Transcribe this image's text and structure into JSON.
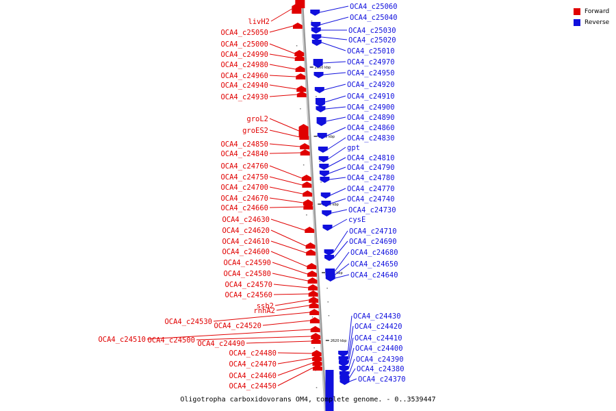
{
  "legend": {
    "forward_label": "Forward",
    "reverse_label": "Reverse",
    "forward_color": "#e00000",
    "reverse_color": "#1010dd"
  },
  "caption": "Oligotropha carboxidovorans OM4, complete genome. - 0..3539447",
  "tick_labels": [
    "2660 kbp",
    "2650 kbp",
    "2640 kbp",
    "2630 kbp",
    "2620 kbp"
  ],
  "forward_genes": [
    "livH2",
    "OCA4_c25050",
    "OCA4_c25000",
    "OCA4_c24990",
    "OCA4_c24980",
    "OCA4_c24960",
    "OCA4_c24940",
    "OCA4_c24930",
    "groL2",
    "groES2",
    "OCA4_c24850",
    "OCA4_c24840",
    "OCA4_c24760",
    "OCA4_c24750",
    "OCA4_c24700",
    "OCA4_c24670",
    "OCA4_c24660",
    "OCA4_c24630",
    "OCA4_c24620",
    "OCA4_c24610",
    "OCA4_c24600",
    "OCA4_c24590",
    "OCA4_c24580",
    "OCA4_c24570",
    "OCA4_c24560",
    "ssb2",
    "rnhA2",
    "OCA4_c24530",
    "OCA4_c24520",
    "OCA4_c24510",
    "OCA4_c24500",
    "OCA4_c24490",
    "OCA4_c24480",
    "OCA4_c24470",
    "OCA4_c24460",
    "OCA4_c24450"
  ],
  "reverse_genes": [
    "OCA4_c25060",
    "OCA4_c25040",
    "OCA4_c25030",
    "OCA4_c25020",
    "OCA4_c25010",
    "OCA4_c24970",
    "OCA4_c24950",
    "OCA4_c24920",
    "OCA4_c24910",
    "OCA4_c24900",
    "OCA4_c24890",
    "OCA4_c24860",
    "OCA4_c24830",
    "gpt",
    "OCA4_c24810",
    "OCA4_c24790",
    "OCA4_c24780",
    "OCA4_c24770",
    "OCA4_c24740",
    "OCA4_c24730",
    "cysE",
    "OCA4_c24710",
    "OCA4_c24690",
    "OCA4_c24680",
    "OCA4_c24650",
    "OCA4_c24640",
    "OCA4_c24430",
    "OCA4_c24420",
    "OCA4_c24410",
    "OCA4_c24400",
    "OCA4_c24390",
    "OCA4_c24380",
    "OCA4_c24370"
  ]
}
